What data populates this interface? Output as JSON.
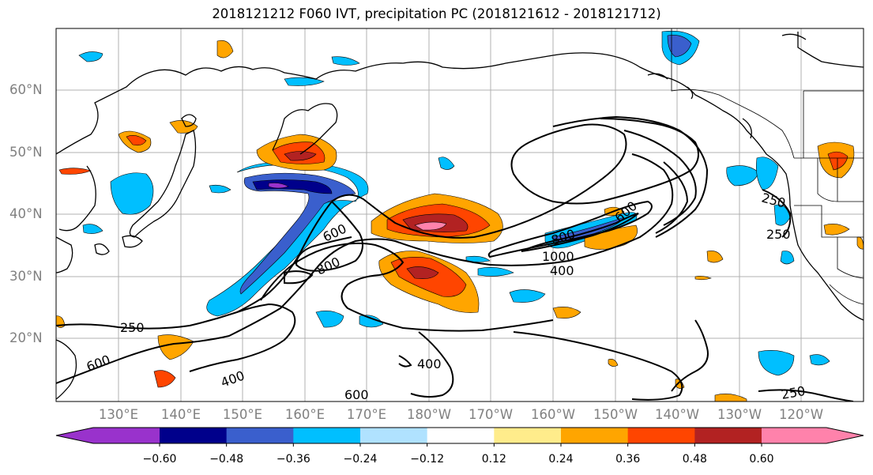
{
  "title": "2018121212 F060 IVT, precipitation PC (2018121612 - 2018121712)",
  "lat_labels": [
    "60°N",
    "50°N",
    "40°N",
    "30°N",
    "20°N"
  ],
  "lon_labels": [
    "130°E",
    "140°E",
    "150°E",
    "160°E",
    "170°E",
    "180°W",
    "170°W",
    "160°W",
    "150°W",
    "140°W",
    "130°W",
    "120°W"
  ],
  "contour_labels": {
    "c250_west": "250",
    "c600_sw": "600",
    "c400_sw": "400",
    "c400_mid": "400",
    "c600_s": "600",
    "c250_se": "250",
    "c600_a": "600",
    "c800_a": "800",
    "c800_b": "800",
    "c1000": "1000",
    "c400_b": "400",
    "c600_b": "600",
    "c250_e1": "250",
    "c250_e2": "250"
  },
  "colorbar": {
    "colors": [
      "#9932cc",
      "#00008b",
      "#3a5fcd",
      "#00bfff",
      "#b0e2ff",
      "#ffffff",
      "#ffec8b",
      "#ffa500",
      "#ff4500",
      "#b22222",
      "#ff82ab"
    ],
    "ticks": [
      "−0.60",
      "−0.48",
      "−0.36",
      "−0.24",
      "−0.12",
      "0.12",
      "0.24",
      "0.36",
      "0.48",
      "0.60"
    ]
  }
}
